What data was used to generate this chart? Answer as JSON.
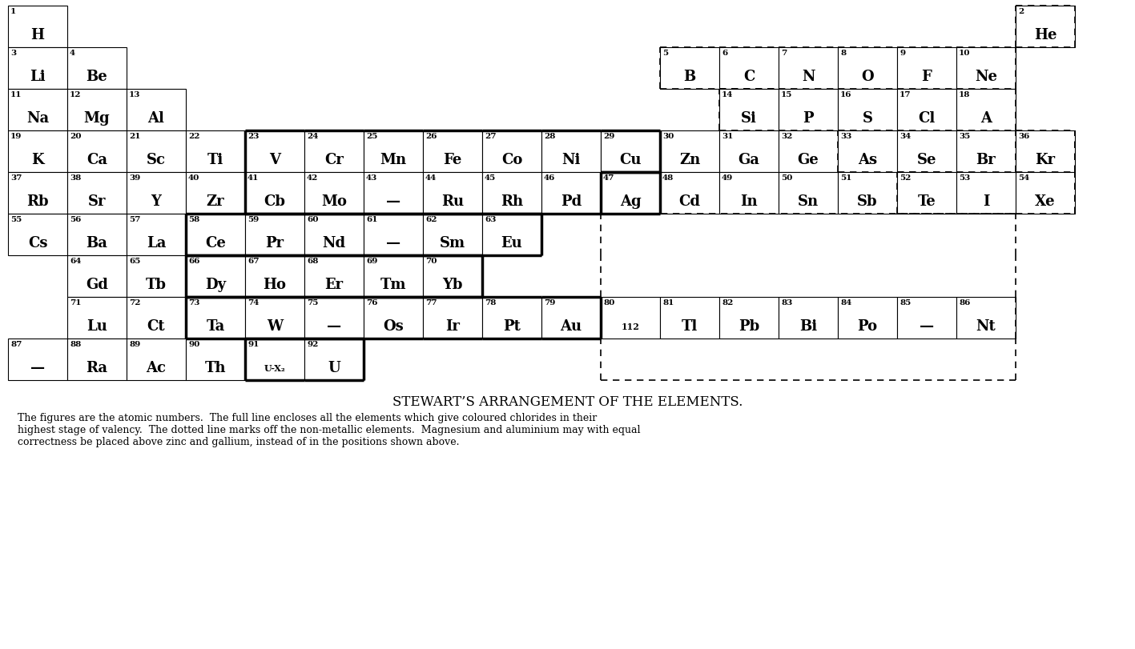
{
  "title": "STEWART’S ARRANGEMENT OF THE ELEMENTS.",
  "caption_line1": "The figures are the atomic numbers.  The full line encloses all the elements which give coloured chlorides in their",
  "caption_line2": "highest stage of valency.  The dotted line marks off the non-metallic elements.  Magnesium and aluminium may with equal",
  "caption_line3": "correctness be placed above zinc and gallium, instead of in the positions shown above.",
  "elements": [
    {
      "num": "1",
      "sym": "H",
      "col": 0,
      "row": 0
    },
    {
      "num": "2",
      "sym": "He",
      "col": 17,
      "row": 0
    },
    {
      "num": "3",
      "sym": "Li",
      "col": 0,
      "row": 1
    },
    {
      "num": "4",
      "sym": "Be",
      "col": 1,
      "row": 1
    },
    {
      "num": "5",
      "sym": "B",
      "col": 11,
      "row": 1
    },
    {
      "num": "6",
      "sym": "C",
      "col": 12,
      "row": 1
    },
    {
      "num": "7",
      "sym": "N",
      "col": 13,
      "row": 1
    },
    {
      "num": "8",
      "sym": "O",
      "col": 14,
      "row": 1
    },
    {
      "num": "9",
      "sym": "F",
      "col": 15,
      "row": 1
    },
    {
      "num": "10",
      "sym": "Ne",
      "col": 16,
      "row": 1
    },
    {
      "num": "11",
      "sym": "Na",
      "col": 0,
      "row": 2
    },
    {
      "num": "12",
      "sym": "Mg",
      "col": 1,
      "row": 2
    },
    {
      "num": "13",
      "sym": "Al",
      "col": 2,
      "row": 2
    },
    {
      "num": "14",
      "sym": "Si",
      "col": 12,
      "row": 2
    },
    {
      "num": "15",
      "sym": "P",
      "col": 13,
      "row": 2
    },
    {
      "num": "16",
      "sym": "S",
      "col": 14,
      "row": 2
    },
    {
      "num": "17",
      "sym": "Cl",
      "col": 15,
      "row": 2
    },
    {
      "num": "18",
      "sym": "A",
      "col": 16,
      "row": 2
    },
    {
      "num": "19",
      "sym": "K",
      "col": 0,
      "row": 3
    },
    {
      "num": "20",
      "sym": "Ca",
      "col": 1,
      "row": 3
    },
    {
      "num": "21",
      "sym": "Sc",
      "col": 2,
      "row": 3
    },
    {
      "num": "22",
      "sym": "Ti",
      "col": 3,
      "row": 3
    },
    {
      "num": "23",
      "sym": "V",
      "col": 4,
      "row": 3
    },
    {
      "num": "24",
      "sym": "Cr",
      "col": 5,
      "row": 3
    },
    {
      "num": "25",
      "sym": "Mn",
      "col": 6,
      "row": 3
    },
    {
      "num": "26",
      "sym": "Fe",
      "col": 7,
      "row": 3
    },
    {
      "num": "27",
      "sym": "Co",
      "col": 8,
      "row": 3
    },
    {
      "num": "28",
      "sym": "Ni",
      "col": 9,
      "row": 3
    },
    {
      "num": "29",
      "sym": "Cu",
      "col": 10,
      "row": 3
    },
    {
      "num": "30",
      "sym": "Zn",
      "col": 11,
      "row": 3
    },
    {
      "num": "31",
      "sym": "Ga",
      "col": 12,
      "row": 3
    },
    {
      "num": "32",
      "sym": "Ge",
      "col": 13,
      "row": 3
    },
    {
      "num": "33",
      "sym": "As",
      "col": 14,
      "row": 3
    },
    {
      "num": "34",
      "sym": "Se",
      "col": 15,
      "row": 3
    },
    {
      "num": "35",
      "sym": "Br",
      "col": 16,
      "row": 3
    },
    {
      "num": "36",
      "sym": "Kr",
      "col": 17,
      "row": 3
    },
    {
      "num": "37",
      "sym": "Rb",
      "col": 0,
      "row": 4
    },
    {
      "num": "38",
      "sym": "Sr",
      "col": 1,
      "row": 4
    },
    {
      "num": "39",
      "sym": "Y",
      "col": 2,
      "row": 4
    },
    {
      "num": "40",
      "sym": "Zr",
      "col": 3,
      "row": 4
    },
    {
      "num": "41",
      "sym": "Cb",
      "col": 4,
      "row": 4
    },
    {
      "num": "42",
      "sym": "Mo",
      "col": 5,
      "row": 4
    },
    {
      "num": "43",
      "sym": "—",
      "col": 6,
      "row": 4
    },
    {
      "num": "44",
      "sym": "Ru",
      "col": 7,
      "row": 4
    },
    {
      "num": "45",
      "sym": "Rh",
      "col": 8,
      "row": 4
    },
    {
      "num": "46",
      "sym": "Pd",
      "col": 9,
      "row": 4
    },
    {
      "num": "47",
      "sym": "Ag",
      "col": 10,
      "row": 4
    },
    {
      "num": "48",
      "sym": "Cd",
      "col": 11,
      "row": 4
    },
    {
      "num": "49",
      "sym": "In",
      "col": 12,
      "row": 4
    },
    {
      "num": "50",
      "sym": "Sn",
      "col": 13,
      "row": 4
    },
    {
      "num": "51",
      "sym": "Sb",
      "col": 14,
      "row": 4
    },
    {
      "num": "52",
      "sym": "Te",
      "col": 15,
      "row": 4
    },
    {
      "num": "53",
      "sym": "I",
      "col": 16,
      "row": 4
    },
    {
      "num": "54",
      "sym": "Xe",
      "col": 17,
      "row": 4
    },
    {
      "num": "55",
      "sym": "Cs",
      "col": 0,
      "row": 5
    },
    {
      "num": "56",
      "sym": "Ba",
      "col": 1,
      "row": 5
    },
    {
      "num": "57",
      "sym": "La",
      "col": 2,
      "row": 5
    },
    {
      "num": "58",
      "sym": "Ce",
      "col": 3,
      "row": 5
    },
    {
      "num": "59",
      "sym": "Pr",
      "col": 4,
      "row": 5
    },
    {
      "num": "60",
      "sym": "Nd",
      "col": 5,
      "row": 5
    },
    {
      "num": "61",
      "sym": "—",
      "col": 6,
      "row": 5
    },
    {
      "num": "62",
      "sym": "Sm",
      "col": 7,
      "row": 5
    },
    {
      "num": "63",
      "sym": "Eu",
      "col": 8,
      "row": 5
    },
    {
      "num": "64",
      "sym": "Gd",
      "col": 1,
      "row": 6
    },
    {
      "num": "65",
      "sym": "Tb",
      "col": 2,
      "row": 6
    },
    {
      "num": "66",
      "sym": "Dy",
      "col": 3,
      "row": 6
    },
    {
      "num": "67",
      "sym": "Ho",
      "col": 4,
      "row": 6
    },
    {
      "num": "68",
      "sym": "Er",
      "col": 5,
      "row": 6
    },
    {
      "num": "69",
      "sym": "Tm",
      "col": 6,
      "row": 6
    },
    {
      "num": "70",
      "sym": "Yb",
      "col": 7,
      "row": 6
    },
    {
      "num": "71",
      "sym": "Lu",
      "col": 1,
      "row": 7
    },
    {
      "num": "72",
      "sym": "Ct",
      "col": 2,
      "row": 7
    },
    {
      "num": "73",
      "sym": "Ta",
      "col": 3,
      "row": 7
    },
    {
      "num": "74",
      "sym": "W",
      "col": 4,
      "row": 7
    },
    {
      "num": "75",
      "sym": "—",
      "col": 5,
      "row": 7
    },
    {
      "num": "76",
      "sym": "Os",
      "col": 6,
      "row": 7
    },
    {
      "num": "77",
      "sym": "Ir",
      "col": 7,
      "row": 7
    },
    {
      "num": "78",
      "sym": "Pt",
      "col": 8,
      "row": 7
    },
    {
      "num": "79",
      "sym": "Au",
      "col": 9,
      "row": 7
    },
    {
      "num": "80",
      "sym": "112",
      "col": 10,
      "row": 7,
      "small_sym": true
    },
    {
      "num": "81",
      "sym": "Tl",
      "col": 11,
      "row": 7
    },
    {
      "num": "82",
      "sym": "Pb",
      "col": 12,
      "row": 7
    },
    {
      "num": "83",
      "sym": "Bi",
      "col": 13,
      "row": 7
    },
    {
      "num": "84",
      "sym": "Po",
      "col": 14,
      "row": 7
    },
    {
      "num": "85",
      "sym": "—",
      "col": 15,
      "row": 7
    },
    {
      "num": "86",
      "sym": "Nt",
      "col": 16,
      "row": 7
    },
    {
      "num": "87",
      "sym": "—",
      "col": 0,
      "row": 8
    },
    {
      "num": "88",
      "sym": "Ra",
      "col": 1,
      "row": 8
    },
    {
      "num": "89",
      "sym": "Ac",
      "col": 2,
      "row": 8
    },
    {
      "num": "90",
      "sym": "Th",
      "col": 3,
      "row": 8
    },
    {
      "num": "91",
      "sym": "U-X₂",
      "col": 4,
      "row": 8,
      "small_sym": true
    },
    {
      "num": "92",
      "sym": "U",
      "col": 5,
      "row": 8
    }
  ],
  "cw": 74,
  "rh": 52,
  "ox": 10,
  "oy": 8,
  "table_rows": 9,
  "num_cols": 18
}
